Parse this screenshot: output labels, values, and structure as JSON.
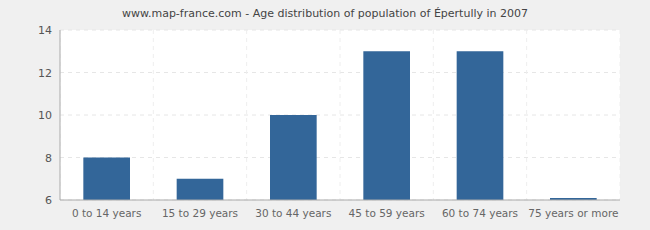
{
  "chart_data": {
    "type": "bar",
    "title": "www.map-france.com - Age distribution of population of Épertully in 2007",
    "categories": [
      "0 to 14 years",
      "15 to 29 years",
      "30 to 44 years",
      "45 to 59 years",
      "60 to 74 years",
      "75 years or more"
    ],
    "values": [
      8,
      7,
      10,
      13,
      13,
      6
    ],
    "color": "#336699",
    "ylim": [
      6,
      14
    ],
    "yticks": [
      6,
      8,
      10,
      12,
      14
    ],
    "grid": true
  }
}
